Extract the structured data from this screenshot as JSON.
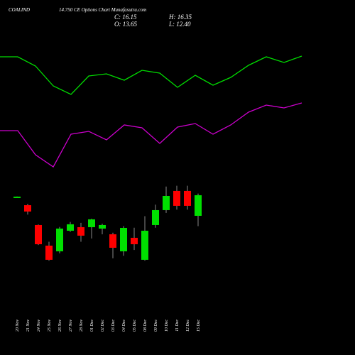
{
  "header": {
    "symbol": "COALIND",
    "subtitle": "14.750 CE Options Chart Munafasutra.com",
    "close": "C: 16.15",
    "open": "O: 13.65",
    "high": "H: 16.35",
    "low": "L: 12.40"
  },
  "chart_data": {
    "type": "candlestick",
    "categories": [
      "20 Nov",
      "21 Nov",
      "24 Nov",
      "25 Nov",
      "26 Nov",
      "27 Nov",
      "28 Nov",
      "01 Dec",
      "02 Dec",
      "03 Dec",
      "04 Dec",
      "05 Dec",
      "08 Dec",
      "09 Dec",
      "10 Dec",
      "11 Dec",
      "12 Dec",
      "15 Dec"
    ],
    "open": [
      15.95,
      14.94,
      12.53,
      10.03,
      9.34,
      11.84,
      12.27,
      12.27,
      12.1,
      11.41,
      9.34,
      10.98,
      8.31,
      12.53,
      14.34,
      16.67,
      16.67,
      13.65
    ],
    "high": [
      16.0,
      15.1,
      12.6,
      10.5,
      12.3,
      12.9,
      12.8,
      13.3,
      12.7,
      11.6,
      12.4,
      12.2,
      13.6,
      15.0,
      17.2,
      17.3,
      17.3,
      16.35
    ],
    "low": [
      15.95,
      13.8,
      10.1,
      8.2,
      9.1,
      11.7,
      10.5,
      10.9,
      11.4,
      8.5,
      8.8,
      9.5,
      8.2,
      12.2,
      14.0,
      14.4,
      14.4,
      12.4
    ],
    "close": [
      15.98,
      14.17,
      10.2,
      8.31,
      12.1,
      12.62,
      11.24,
      13.22,
      12.53,
      9.77,
      12.18,
      10.2,
      11.84,
      14.34,
      16.06,
      14.86,
      14.86,
      16.15
    ],
    "up_color": "#00e000",
    "down_color": "#ff0000",
    "wick_color": "#888888",
    "ylim": [
      8,
      20
    ],
    "series": [
      {
        "color": "#00dd00",
        "values": [
          85,
          85,
          78.5,
          64.5,
          58.5,
          71.5,
          73,
          68.5,
          75.5,
          73.5,
          63.5,
          72,
          65,
          70.5,
          79,
          85,
          81,
          85.5
        ]
      },
      {
        "color": "#cc00cc",
        "values": [
          33,
          33,
          16,
          7.5,
          30.5,
          32.5,
          26.5,
          37,
          35,
          24,
          35.5,
          38,
          30.5,
          37,
          46,
          51,
          49,
          52.5
        ]
      }
    ],
    "y2lim": [
      0,
      100
    ]
  }
}
